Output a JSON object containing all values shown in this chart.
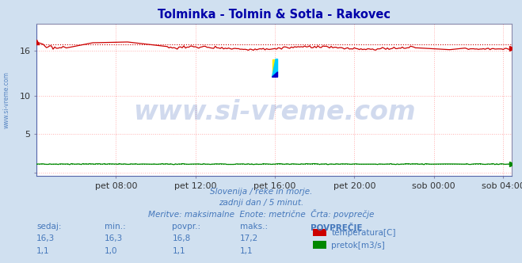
{
  "title": "Tolminka - Tolmin & Sotla - Rakovec",
  "title_color": "#0000aa",
  "bg_color": "#d0e0f0",
  "plot_bg_color": "#ffffff",
  "grid_color_major": "#ffb0b0",
  "grid_color_minor": "#ffe0e0",
  "xlabel_ticks": [
    "pet 08:00",
    "pet 12:00",
    "pet 16:00",
    "pet 20:00",
    "sob 00:00",
    "sob 04:00"
  ],
  "yticks": [
    0,
    5,
    10,
    16
  ],
  "ytick_labels": [
    "",
    "5",
    "10",
    "16"
  ],
  "ylim": [
    -0.5,
    19.5
  ],
  "xlim": [
    0,
    287
  ],
  "temp_mean": 16.8,
  "temp_color": "#cc0000",
  "flow_mean": 1.1,
  "flow_color": "#008800",
  "watermark_text": "www.si-vreme.com",
  "watermark_color": "#1a4aaa",
  "watermark_alpha": 0.2,
  "watermark_fontsize": 24,
  "footer_line1": "Slovenija / reke in morje.",
  "footer_line2": "zadnji dan / 5 minut.",
  "footer_line3": "Meritve: maksimalne  Enote: metrične  Črta: povprečje",
  "footer_color": "#4477bb",
  "sidebar_text": "www.si-vreme.com",
  "sidebar_color": "#4477bb",
  "table_headers": [
    "sedaj:",
    "min.:",
    "povpr.:",
    "maks.:",
    "POVPREČJE"
  ],
  "table_temp_vals": [
    "16,3",
    "16,3",
    "16,8",
    "17,2"
  ],
  "table_flow_vals": [
    "1,1",
    "1,0",
    "1,1",
    "1,1"
  ],
  "table_label_temp": "temperatura[C]",
  "table_label_flow": "pretok[m3/s]",
  "table_color": "#4477bb",
  "logo_yellow": "#ffee00",
  "logo_cyan": "#00ccff",
  "logo_blue": "#0000cc",
  "logo_size": 14
}
